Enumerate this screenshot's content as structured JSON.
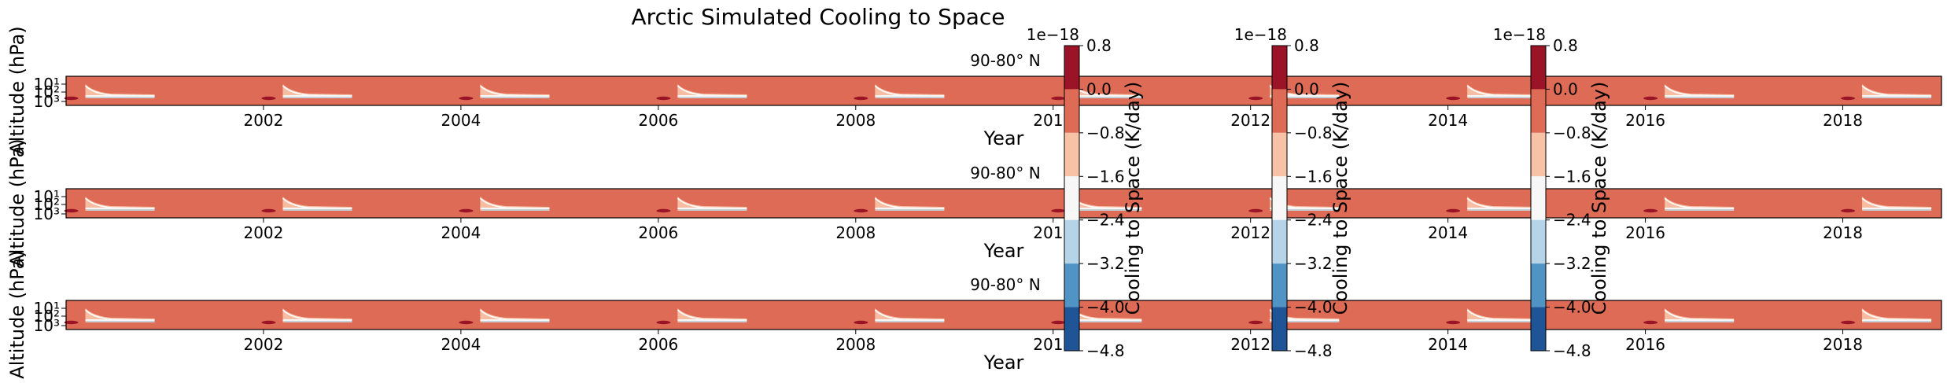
{
  "figure": {
    "title": "Arctic Simulated Cooling to Space"
  },
  "chart_data": {
    "type": "heatmap",
    "title": "Arctic Simulated Cooling to Space",
    "panels": [
      {
        "subtitle": "90-80° N",
        "xlabel": "Year",
        "ylabel": "Altitude (hPa)",
        "xlim": [
          2000,
          2019
        ],
        "x_ticks": [
          2002,
          2004,
          2006,
          2008,
          2010,
          2012,
          2014,
          2016,
          2018
        ],
        "x_tick_labels": [
          "2002",
          "2004",
          "2006",
          "2008",
          "2010",
          "2012",
          "2014",
          "2016",
          "2018"
        ],
        "y_scale": "log",
        "y_inverted": true,
        "y_tick_labels": [
          "10¹",
          "10²",
          "10³"
        ],
        "background_level": 0.0,
        "features": [
          {
            "year": 2000.1,
            "kind": "winter-streak"
          },
          {
            "year": 2002.1,
            "kind": "winter-streak"
          },
          {
            "year": 2004.1,
            "kind": "winter-streak"
          },
          {
            "year": 2006.1,
            "kind": "winter-streak"
          },
          {
            "year": 2008.1,
            "kind": "winter-streak"
          },
          {
            "year": 2010.1,
            "kind": "winter-streak"
          },
          {
            "year": 2012.1,
            "kind": "winter-streak"
          },
          {
            "year": 2014.1,
            "kind": "winter-streak"
          },
          {
            "year": 2016.1,
            "kind": "winter-streak"
          },
          {
            "year": 2018.1,
            "kind": "winter-streak"
          }
        ]
      },
      {
        "subtitle": "90-80° N",
        "xlabel": "Year",
        "ylabel": "Altitude (hPa)",
        "xlim": [
          2000,
          2019
        ],
        "x_ticks": [
          2002,
          2004,
          2006,
          2008,
          2010,
          2012,
          2014,
          2016,
          2018
        ],
        "x_tick_labels": [
          "2002",
          "2004",
          "2006",
          "2008",
          "2010",
          "2012",
          "2014",
          "2016",
          "2018"
        ],
        "y_scale": "log",
        "y_inverted": true,
        "y_tick_labels": [
          "10¹",
          "10²",
          "10³"
        ],
        "background_level": 0.0,
        "features": [
          {
            "year": 2000.1,
            "kind": "winter-streak"
          },
          {
            "year": 2002.1,
            "kind": "winter-streak"
          },
          {
            "year": 2004.1,
            "kind": "winter-streak"
          },
          {
            "year": 2006.1,
            "kind": "winter-streak"
          },
          {
            "year": 2008.1,
            "kind": "winter-streak"
          },
          {
            "year": 2010.1,
            "kind": "winter-streak"
          },
          {
            "year": 2012.1,
            "kind": "winter-streak"
          },
          {
            "year": 2014.1,
            "kind": "winter-streak"
          },
          {
            "year": 2016.1,
            "kind": "winter-streak"
          },
          {
            "year": 2018.1,
            "kind": "winter-streak"
          }
        ]
      },
      {
        "subtitle": "90-80° N",
        "xlabel": "Year",
        "ylabel": "Altitude (hPa)",
        "xlim": [
          2000,
          2019
        ],
        "x_ticks": [
          2002,
          2004,
          2006,
          2008,
          2010,
          2012,
          2014,
          2016,
          2018
        ],
        "x_tick_labels": [
          "2002",
          "2004",
          "2006",
          "2008",
          "2010",
          "2012",
          "2014",
          "2016",
          "2018"
        ],
        "y_scale": "log",
        "y_inverted": true,
        "y_tick_labels": [
          "10¹",
          "10²",
          "10³"
        ],
        "background_level": 0.0,
        "features": [
          {
            "year": 2000.1,
            "kind": "winter-streak"
          },
          {
            "year": 2002.1,
            "kind": "winter-streak"
          },
          {
            "year": 2004.1,
            "kind": "winter-streak"
          },
          {
            "year": 2006.1,
            "kind": "winter-streak"
          },
          {
            "year": 2008.1,
            "kind": "winter-streak"
          },
          {
            "year": 2010.1,
            "kind": "winter-streak"
          },
          {
            "year": 2012.1,
            "kind": "winter-streak"
          },
          {
            "year": 2014.1,
            "kind": "winter-streak"
          },
          {
            "year": 2016.1,
            "kind": "winter-streak"
          },
          {
            "year": 2018.1,
            "kind": "winter-streak"
          }
        ]
      }
    ],
    "colorbars": [
      {
        "label": "Cooling to Space (K/day)",
        "offset_text": "1e−18",
        "ticks": [
          0.8,
          0.0,
          -0.8,
          -1.6,
          -2.4,
          -3.2,
          -4.0,
          -4.8
        ],
        "tick_labels": [
          "0.8",
          "0.0",
          "−0.8",
          "−1.6",
          "−2.4",
          "−3.2",
          "−4.0",
          "−4.8"
        ],
        "levels": [
          0.8,
          0.0,
          -0.8,
          -1.6,
          -2.4,
          -3.2,
          -4.0,
          -4.8
        ],
        "colors": [
          "#9b1326",
          "#dd6b55",
          "#f7c2a6",
          "#f7f7f7",
          "#b5d4e8",
          "#4f94c4",
          "#1f5597"
        ]
      },
      {
        "label": "Cooling to Space (K/day)",
        "offset_text": "1e−18",
        "ticks": [
          0.8,
          0.0,
          -0.8,
          -1.6,
          -2.4,
          -3.2,
          -4.0,
          -4.8
        ],
        "tick_labels": [
          "0.8",
          "0.0",
          "−0.8",
          "−1.6",
          "−2.4",
          "−3.2",
          "−4.0",
          "−4.8"
        ],
        "levels": [
          0.8,
          0.0,
          -0.8,
          -1.6,
          -2.4,
          -3.2,
          -4.0,
          -4.8
        ],
        "colors": [
          "#9b1326",
          "#dd6b55",
          "#f7c2a6",
          "#f7f7f7",
          "#b5d4e8",
          "#4f94c4",
          "#1f5597"
        ]
      },
      {
        "label": "Cooling to Space (K/day)",
        "offset_text": "1e−18",
        "ticks": [
          0.8,
          0.0,
          -0.8,
          -1.6,
          -2.4,
          -3.2,
          -4.0,
          -4.8
        ],
        "tick_labels": [
          "0.8",
          "0.0",
          "−0.8",
          "−1.6",
          "−2.4",
          "−3.2",
          "−4.0",
          "−4.8"
        ],
        "levels": [
          0.8,
          0.0,
          -0.8,
          -1.6,
          -2.4,
          -3.2,
          -4.0,
          -4.8
        ],
        "colors": [
          "#9b1326",
          "#dd6b55",
          "#f7c2a6",
          "#f7f7f7",
          "#b5d4e8",
          "#4f94c4",
          "#1f5597"
        ]
      }
    ]
  }
}
